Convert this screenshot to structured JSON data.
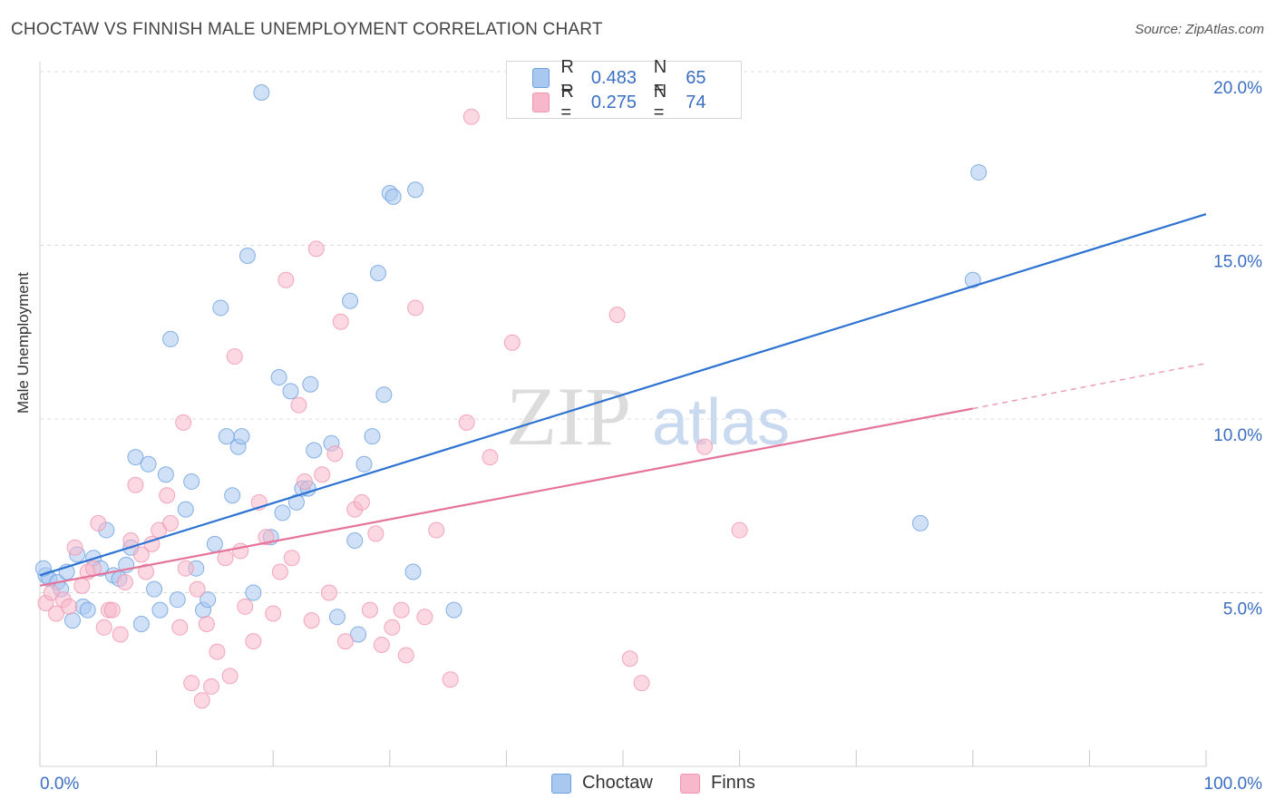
{
  "title": "CHOCTAW VS FINNISH MALE UNEMPLOYMENT CORRELATION CHART",
  "source": "Source: ZipAtlas.com",
  "watermark": {
    "zip": "ZIP",
    "atlas": "atlas"
  },
  "legend": {
    "rows": [
      {
        "r_label": "R =",
        "r_value": "0.483",
        "n_label": "N =",
        "n_value": "65",
        "color": "#a9c8f0"
      },
      {
        "r_label": "R =",
        "r_value": "0.275",
        "n_label": "N =",
        "n_value": "74",
        "color": "#f7b8cb"
      }
    ]
  },
  "chart_data": {
    "type": "scatter",
    "title": "CHOCTAW VS FINNISH MALE UNEMPLOYMENT CORRELATION CHART",
    "xlabel": "",
    "ylabel": "Male Unemployment",
    "xlim": [
      0,
      100
    ],
    "ylim": [
      0,
      20
    ],
    "x_tick_labels": [
      "0.0%",
      "100.0%"
    ],
    "y_ticks": [
      5,
      10,
      15,
      20
    ],
    "y_tick_labels": [
      "5.0%",
      "10.0%",
      "15.0%",
      "20.0%"
    ],
    "grid": true,
    "legend_position": "bottom",
    "series": [
      {
        "name": "Choctaw",
        "color": "#6a9fe0",
        "fill": "#a9c8f0",
        "line_color": "#2d72d2",
        "trend": {
          "x": [
            0,
            100
          ],
          "y": [
            5.5,
            15.9
          ]
        },
        "points": [
          [
            0.5,
            5.5
          ],
          [
            0.8,
            5.4
          ],
          [
            1.5,
            5.3
          ],
          [
            1.8,
            5.1
          ],
          [
            2.3,
            5.6
          ],
          [
            2.8,
            4.2
          ],
          [
            3.2,
            6.1
          ],
          [
            3.7,
            4.6
          ],
          [
            4.1,
            4.5
          ],
          [
            4.6,
            6.0
          ],
          [
            5.2,
            5.7
          ],
          [
            5.7,
            6.8
          ],
          [
            6.3,
            5.5
          ],
          [
            6.8,
            5.4
          ],
          [
            7.4,
            5.8
          ],
          [
            7.8,
            6.3
          ],
          [
            8.2,
            8.9
          ],
          [
            8.7,
            4.1
          ],
          [
            9.3,
            8.7
          ],
          [
            9.8,
            5.1
          ],
          [
            10.3,
            4.5
          ],
          [
            10.8,
            8.4
          ],
          [
            11.2,
            12.3
          ],
          [
            11.8,
            4.8
          ],
          [
            12.5,
            7.4
          ],
          [
            13.0,
            8.2
          ],
          [
            13.4,
            5.7
          ],
          [
            14.0,
            4.5
          ],
          [
            14.4,
            4.8
          ],
          [
            15.0,
            6.4
          ],
          [
            15.5,
            13.2
          ],
          [
            16.0,
            9.5
          ],
          [
            16.5,
            7.8
          ],
          [
            17.0,
            9.2
          ],
          [
            17.3,
            9.5
          ],
          [
            17.8,
            14.7
          ],
          [
            18.3,
            5.0
          ],
          [
            19.0,
            19.4
          ],
          [
            19.8,
            6.6
          ],
          [
            20.5,
            11.2
          ],
          [
            20.8,
            7.3
          ],
          [
            21.5,
            10.8
          ],
          [
            22.0,
            7.6
          ],
          [
            22.5,
            8.0
          ],
          [
            23.0,
            8.0
          ],
          [
            23.2,
            11.0
          ],
          [
            23.5,
            9.1
          ],
          [
            25.0,
            9.3
          ],
          [
            25.5,
            4.3
          ],
          [
            26.6,
            13.4
          ],
          [
            27.0,
            6.5
          ],
          [
            27.3,
            3.8
          ],
          [
            27.8,
            8.7
          ],
          [
            28.5,
            9.5
          ],
          [
            29.0,
            14.2
          ],
          [
            29.5,
            10.7
          ],
          [
            30.0,
            16.5
          ],
          [
            30.3,
            16.4
          ],
          [
            32.2,
            16.6
          ],
          [
            32.0,
            5.6
          ],
          [
            35.5,
            4.5
          ],
          [
            75.5,
            7.0
          ],
          [
            80.0,
            14.0
          ],
          [
            80.5,
            17.1
          ],
          [
            0.3,
            5.7
          ]
        ]
      },
      {
        "name": "Finns",
        "color": "#f094b0",
        "fill": "#f7b8cb",
        "line_color": "#e5739a",
        "trend": {
          "x": [
            0,
            80
          ],
          "y": [
            5.2,
            10.3
          ]
        },
        "trend_dashed": {
          "x": [
            80,
            100
          ],
          "y": [
            10.3,
            11.6
          ]
        },
        "points": [
          [
            0.5,
            4.7
          ],
          [
            1.0,
            5.0
          ],
          [
            1.4,
            4.4
          ],
          [
            2.0,
            4.8
          ],
          [
            2.5,
            4.6
          ],
          [
            3.0,
            6.3
          ],
          [
            3.6,
            5.2
          ],
          [
            4.1,
            5.6
          ],
          [
            4.6,
            5.7
          ],
          [
            5.0,
            7.0
          ],
          [
            5.5,
            4.0
          ],
          [
            5.9,
            4.5
          ],
          [
            6.2,
            4.5
          ],
          [
            6.9,
            3.8
          ],
          [
            7.3,
            5.3
          ],
          [
            7.8,
            6.5
          ],
          [
            8.2,
            8.1
          ],
          [
            8.7,
            6.1
          ],
          [
            9.1,
            5.6
          ],
          [
            9.6,
            6.4
          ],
          [
            10.2,
            6.8
          ],
          [
            10.9,
            7.8
          ],
          [
            11.2,
            7.0
          ],
          [
            12.0,
            4.0
          ],
          [
            12.3,
            9.9
          ],
          [
            12.5,
            5.7
          ],
          [
            13.0,
            2.4
          ],
          [
            13.5,
            5.1
          ],
          [
            13.9,
            1.9
          ],
          [
            14.3,
            4.1
          ],
          [
            14.7,
            2.3
          ],
          [
            15.2,
            3.3
          ],
          [
            15.9,
            6.0
          ],
          [
            16.3,
            2.6
          ],
          [
            16.7,
            11.8
          ],
          [
            17.2,
            6.2
          ],
          [
            17.6,
            4.6
          ],
          [
            18.3,
            3.6
          ],
          [
            18.8,
            7.6
          ],
          [
            19.4,
            6.6
          ],
          [
            20.0,
            4.4
          ],
          [
            20.6,
            5.6
          ],
          [
            21.1,
            14.0
          ],
          [
            21.6,
            6.0
          ],
          [
            22.2,
            10.4
          ],
          [
            22.7,
            8.2
          ],
          [
            23.3,
            4.2
          ],
          [
            23.7,
            14.9
          ],
          [
            24.2,
            8.4
          ],
          [
            24.8,
            5.0
          ],
          [
            25.3,
            9.0
          ],
          [
            25.8,
            12.8
          ],
          [
            26.2,
            3.6
          ],
          [
            27.0,
            7.4
          ],
          [
            27.6,
            7.6
          ],
          [
            28.3,
            4.5
          ],
          [
            28.8,
            6.7
          ],
          [
            29.3,
            3.5
          ],
          [
            30.2,
            4.0
          ],
          [
            31.4,
            3.2
          ],
          [
            32.2,
            13.2
          ],
          [
            33.0,
            4.3
          ],
          [
            34.0,
            6.8
          ],
          [
            35.2,
            2.5
          ],
          [
            36.6,
            9.9
          ],
          [
            37.0,
            18.7
          ],
          [
            38.6,
            8.9
          ],
          [
            40.5,
            12.2
          ],
          [
            49.5,
            13.0
          ],
          [
            50.6,
            3.1
          ],
          [
            51.6,
            2.4
          ],
          [
            57.0,
            9.2
          ],
          [
            60.0,
            6.8
          ],
          [
            31.0,
            4.5
          ]
        ]
      }
    ]
  },
  "bottom_legend": [
    {
      "label": "Choctaw",
      "color": "#a9c8f0"
    },
    {
      "label": "Finns",
      "color": "#f7b8cb"
    }
  ]
}
